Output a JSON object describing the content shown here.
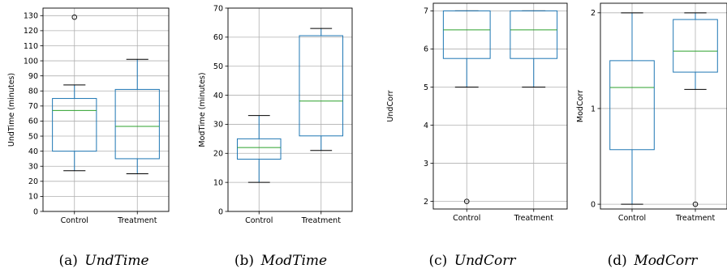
{
  "chart_data": [
    {
      "type": "box",
      "caption_label": "(a)",
      "caption_name": "UndTime",
      "ylabel": "UndTime (minutes)",
      "categories": [
        "Control",
        "Treatment"
      ],
      "ylim": [
        0,
        135
      ],
      "yticks": [
        0,
        10,
        20,
        30,
        40,
        50,
        60,
        70,
        80,
        90,
        100,
        110,
        120,
        130
      ],
      "boxes": [
        {
          "whislo": 27,
          "q1": 40,
          "med": 67,
          "q3": 75,
          "whishi": 84,
          "fliers": [
            129
          ]
        },
        {
          "whislo": 25,
          "q1": 35,
          "med": 56.5,
          "q3": 81,
          "whishi": 101,
          "fliers": []
        }
      ],
      "grid": true
    },
    {
      "type": "box",
      "caption_label": "(b)",
      "caption_name": "ModTime",
      "ylabel": "ModTime (minutes)",
      "categories": [
        "Control",
        "Treatment"
      ],
      "ylim": [
        0,
        70
      ],
      "yticks": [
        0,
        10,
        20,
        30,
        40,
        50,
        60,
        70
      ],
      "boxes": [
        {
          "whislo": 10,
          "q1": 18,
          "med": 22,
          "q3": 25,
          "whishi": 33,
          "fliers": []
        },
        {
          "whislo": 21,
          "q1": 26,
          "med": 38,
          "q3": 60.5,
          "whishi": 63,
          "fliers": []
        }
      ],
      "grid": true
    },
    {
      "type": "box",
      "caption_label": "(c)",
      "caption_name": "UndCorr",
      "ylabel": "UndCorr",
      "categories": [
        "Control",
        "Treatment"
      ],
      "ylim": [
        1.8,
        7.2
      ],
      "yticks": [
        2,
        3,
        4,
        5,
        6,
        7
      ],
      "boxes": [
        {
          "whislo": 5,
          "q1": 5.75,
          "med": 6.5,
          "q3": 7,
          "whishi": 7,
          "fliers": [
            2
          ]
        },
        {
          "whislo": 5,
          "q1": 5.75,
          "med": 6.5,
          "q3": 7,
          "whishi": 7,
          "fliers": []
        }
      ],
      "grid": true
    },
    {
      "type": "box",
      "caption_label": "(d)",
      "caption_name": "ModCorr",
      "ylabel": "ModCorr",
      "categories": [
        "Control",
        "Treatment"
      ],
      "ylim": [
        -0.05,
        2.1
      ],
      "yticks": [
        0,
        1,
        2
      ],
      "boxes": [
        {
          "whislo": 0,
          "q1": 0.57,
          "med": 1.22,
          "q3": 1.5,
          "whishi": 2,
          "fliers": []
        },
        {
          "whislo": 1.2,
          "q1": 1.38,
          "med": 1.6,
          "q3": 1.93,
          "whishi": 2,
          "fliers": [
            0
          ]
        }
      ],
      "grid": true
    }
  ]
}
